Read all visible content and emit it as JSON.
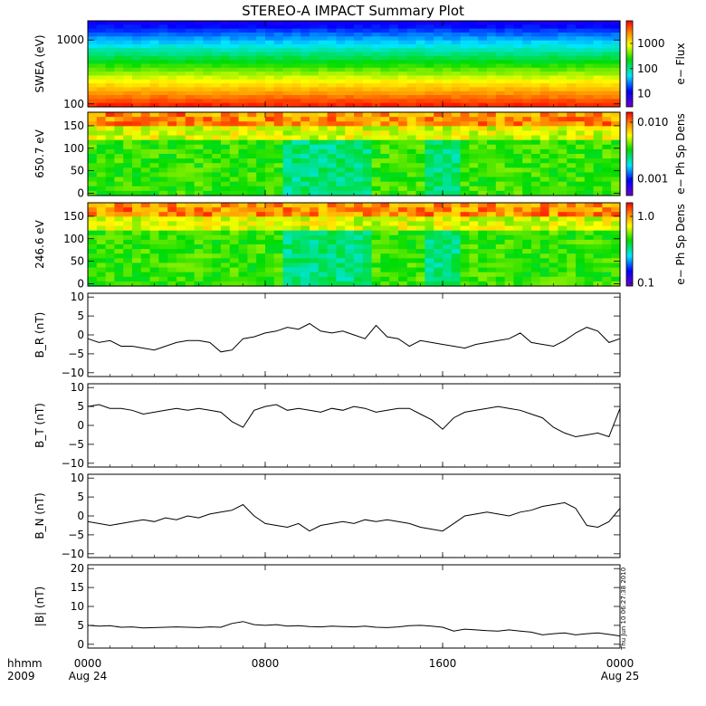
{
  "title": "STEREO-A IMPACT Summary Plot",
  "stamp": "Thu Jun 10 06:27:38 2010",
  "x_axis": {
    "row1_label": "hhmm",
    "row2_label": "2009",
    "ticks": [
      {
        "t": 0,
        "label": "0000",
        "sub": "Aug 24"
      },
      {
        "t": 8,
        "label": "0800",
        "sub": ""
      },
      {
        "t": 16,
        "label": "1600",
        "sub": ""
      },
      {
        "t": 24,
        "label": "0000",
        "sub": "Aug 25"
      }
    ]
  },
  "chart_data": [
    {
      "type": "heatmap",
      "ylabel": "SWEA (eV)",
      "scale": "log",
      "ylim": [
        90,
        2000
      ],
      "yticks": [
        100,
        1000
      ],
      "ytick_labels": [
        "100",
        "1000"
      ],
      "colorbar": {
        "label": "e− Flux",
        "scale": "log",
        "range": [
          3,
          8000
        ],
        "ticks": [
          10,
          100,
          1000
        ],
        "tick_labels": [
          "10",
          "100",
          "1000"
        ]
      },
      "pattern": "energy-flux",
      "colors": [
        "#ff0000",
        "#ff8000",
        "#ffff00",
        "#00dd00",
        "#00ffff",
        "#0000ff"
      ]
    },
    {
      "type": "heatmap",
      "ylabel": "650.7 eV",
      "ylim": [
        -5,
        180
      ],
      "yticks": [
        0,
        50,
        100,
        150
      ],
      "ytick_labels": [
        "0",
        "50",
        "100",
        "150"
      ],
      "colorbar": {
        "label": "e− Ph Sp Dens",
        "scale": "log",
        "range": [
          0.0005,
          0.015
        ],
        "ticks": [
          0.001,
          0.01
        ],
        "tick_labels": [
          "0.001",
          "0.010"
        ]
      },
      "pattern": "pitch-angle"
    },
    {
      "type": "heatmap",
      "ylabel": "246.6 eV",
      "ylim": [
        -5,
        180
      ],
      "yticks": [
        0,
        50,
        100,
        150
      ],
      "ytick_labels": [
        "0",
        "50",
        "100",
        "150"
      ],
      "colorbar": {
        "label": "e− Ph Sp Dens",
        "scale": "log",
        "range": [
          0.09,
          1.6
        ],
        "ticks": [
          0.1,
          1.0
        ],
        "tick_labels": [
          "0.1",
          "1.0"
        ]
      },
      "pattern": "pitch-angle"
    },
    {
      "type": "line",
      "ylabel": "B_R (nT)",
      "ylim": [
        -11,
        11
      ],
      "yticks": [
        -10,
        -5,
        0,
        5,
        10
      ],
      "ytick_labels": [
        "−10",
        "−5",
        "0",
        "5",
        "10"
      ],
      "x": [
        0,
        0.5,
        1,
        1.5,
        2,
        2.5,
        3,
        3.5,
        4,
        4.5,
        5,
        5.5,
        6,
        6.5,
        7,
        7.5,
        8,
        8.5,
        9,
        9.5,
        10,
        10.5,
        11,
        11.5,
        12,
        12.5,
        13,
        13.5,
        14,
        14.5,
        15,
        15.5,
        16,
        16.5,
        17,
        17.5,
        18,
        18.5,
        19,
        19.5,
        20,
        20.5,
        21,
        21.5,
        22,
        22.5,
        23,
        23.5,
        24
      ],
      "y": [
        -1,
        -2,
        -1.5,
        -3,
        -3,
        -3.5,
        -4,
        -3,
        -2,
        -1.5,
        -1.5,
        -2,
        -4.5,
        -4,
        -1,
        -0.5,
        0.5,
        1,
        2,
        1.5,
        3,
        1,
        0.5,
        1,
        0,
        -1,
        2.5,
        -0.5,
        -1,
        -3,
        -1.5,
        -2,
        -2.5,
        -3,
        -3.5,
        -2.5,
        -2,
        -1.5,
        -1,
        0.5,
        -2,
        -2.5,
        -3,
        -1.5,
        0.5,
        2,
        1,
        -2,
        -1
      ]
    },
    {
      "type": "line",
      "ylabel": "B_T (nT)",
      "ylim": [
        -11,
        11
      ],
      "yticks": [
        -10,
        -5,
        0,
        5,
        10
      ],
      "ytick_labels": [
        "−10",
        "−5",
        "0",
        "5",
        "10"
      ],
      "x": [
        0,
        0.5,
        1,
        1.5,
        2,
        2.5,
        3,
        3.5,
        4,
        4.5,
        5,
        5.5,
        6,
        6.5,
        7,
        7.5,
        8,
        8.5,
        9,
        9.5,
        10,
        10.5,
        11,
        11.5,
        12,
        12.5,
        13,
        13.5,
        14,
        14.5,
        15,
        15.5,
        16,
        16.5,
        17,
        17.5,
        18,
        18.5,
        19,
        19.5,
        20,
        20.5,
        21,
        21.5,
        22,
        22.5,
        23,
        23.5,
        24
      ],
      "y": [
        5,
        5.5,
        4.5,
        4.5,
        4,
        3,
        3.5,
        4,
        4.5,
        4,
        4.5,
        4,
        3.5,
        1,
        -0.5,
        4,
        5,
        5.5,
        4,
        4.5,
        4,
        3.5,
        4.5,
        4,
        5,
        4.5,
        3.5,
        4,
        4.5,
        4.5,
        3,
        1.5,
        -1,
        2,
        3.5,
        4,
        4.5,
        5,
        4.5,
        4,
        3,
        2,
        -0.5,
        -2,
        -3,
        -2.5,
        -2,
        -3,
        4.5
      ]
    },
    {
      "type": "line",
      "ylabel": "B_N (nT)",
      "ylim": [
        -11,
        11
      ],
      "yticks": [
        -10,
        -5,
        0,
        5,
        10
      ],
      "ytick_labels": [
        "−10",
        "−5",
        "0",
        "5",
        "10"
      ],
      "x": [
        0,
        0.5,
        1,
        1.5,
        2,
        2.5,
        3,
        3.5,
        4,
        4.5,
        5,
        5.5,
        6,
        6.5,
        7,
        7.5,
        8,
        8.5,
        9,
        9.5,
        10,
        10.5,
        11,
        11.5,
        12,
        12.5,
        13,
        13.5,
        14,
        14.5,
        15,
        15.5,
        16,
        16.5,
        17,
        17.5,
        18,
        18.5,
        19,
        19.5,
        20,
        20.5,
        21,
        21.5,
        22,
        22.5,
        23,
        23.5,
        24
      ],
      "y": [
        -1.5,
        -2,
        -2.5,
        -2,
        -1.5,
        -1,
        -1.5,
        -0.5,
        -1,
        0,
        -0.5,
        0.5,
        1,
        1.5,
        3,
        0,
        -2,
        -2.5,
        -3,
        -2,
        -4,
        -2.5,
        -2,
        -1.5,
        -2,
        -1,
        -1.5,
        -1,
        -1.5,
        -2,
        -3,
        -3.5,
        -4,
        -2,
        0,
        0.5,
        1,
        0.5,
        0,
        1,
        1.5,
        2.5,
        3,
        3.5,
        2,
        -2.5,
        -3,
        -1.5,
        2
      ]
    },
    {
      "type": "line",
      "ylabel": "|B| (nT)",
      "ylim": [
        -1,
        21
      ],
      "yticks": [
        0,
        5,
        10,
        15,
        20
      ],
      "ytick_labels": [
        "0",
        "5",
        "10",
        "15",
        "20"
      ],
      "x": [
        0,
        0.5,
        1,
        1.5,
        2,
        2.5,
        3,
        3.5,
        4,
        4.5,
        5,
        5.5,
        6,
        6.5,
        7,
        7.5,
        8,
        8.5,
        9,
        9.5,
        10,
        10.5,
        11,
        11.5,
        12,
        12.5,
        13,
        13.5,
        14,
        14.5,
        15,
        15.5,
        16,
        16.5,
        17,
        17.5,
        18,
        18.5,
        19,
        19.5,
        20,
        20.5,
        21,
        21.5,
        22,
        22.5,
        23,
        23.5,
        24
      ],
      "y": [
        5,
        4.8,
        4.9,
        4.5,
        4.6,
        4.3,
        4.4,
        4.5,
        4.6,
        4.5,
        4.4,
        4.6,
        4.5,
        5.5,
        6,
        5.2,
        5,
        5.2,
        4.8,
        4.9,
        4.7,
        4.6,
        4.8,
        4.7,
        4.6,
        4.8,
        4.5,
        4.4,
        4.6,
        4.9,
        5,
        4.8,
        4.5,
        3.5,
        4,
        3.8,
        3.6,
        3.5,
        3.8,
        3.5,
        3.2,
        2.5,
        2.8,
        3,
        2.5,
        2.8,
        3,
        2.6,
        2.2
      ]
    }
  ]
}
